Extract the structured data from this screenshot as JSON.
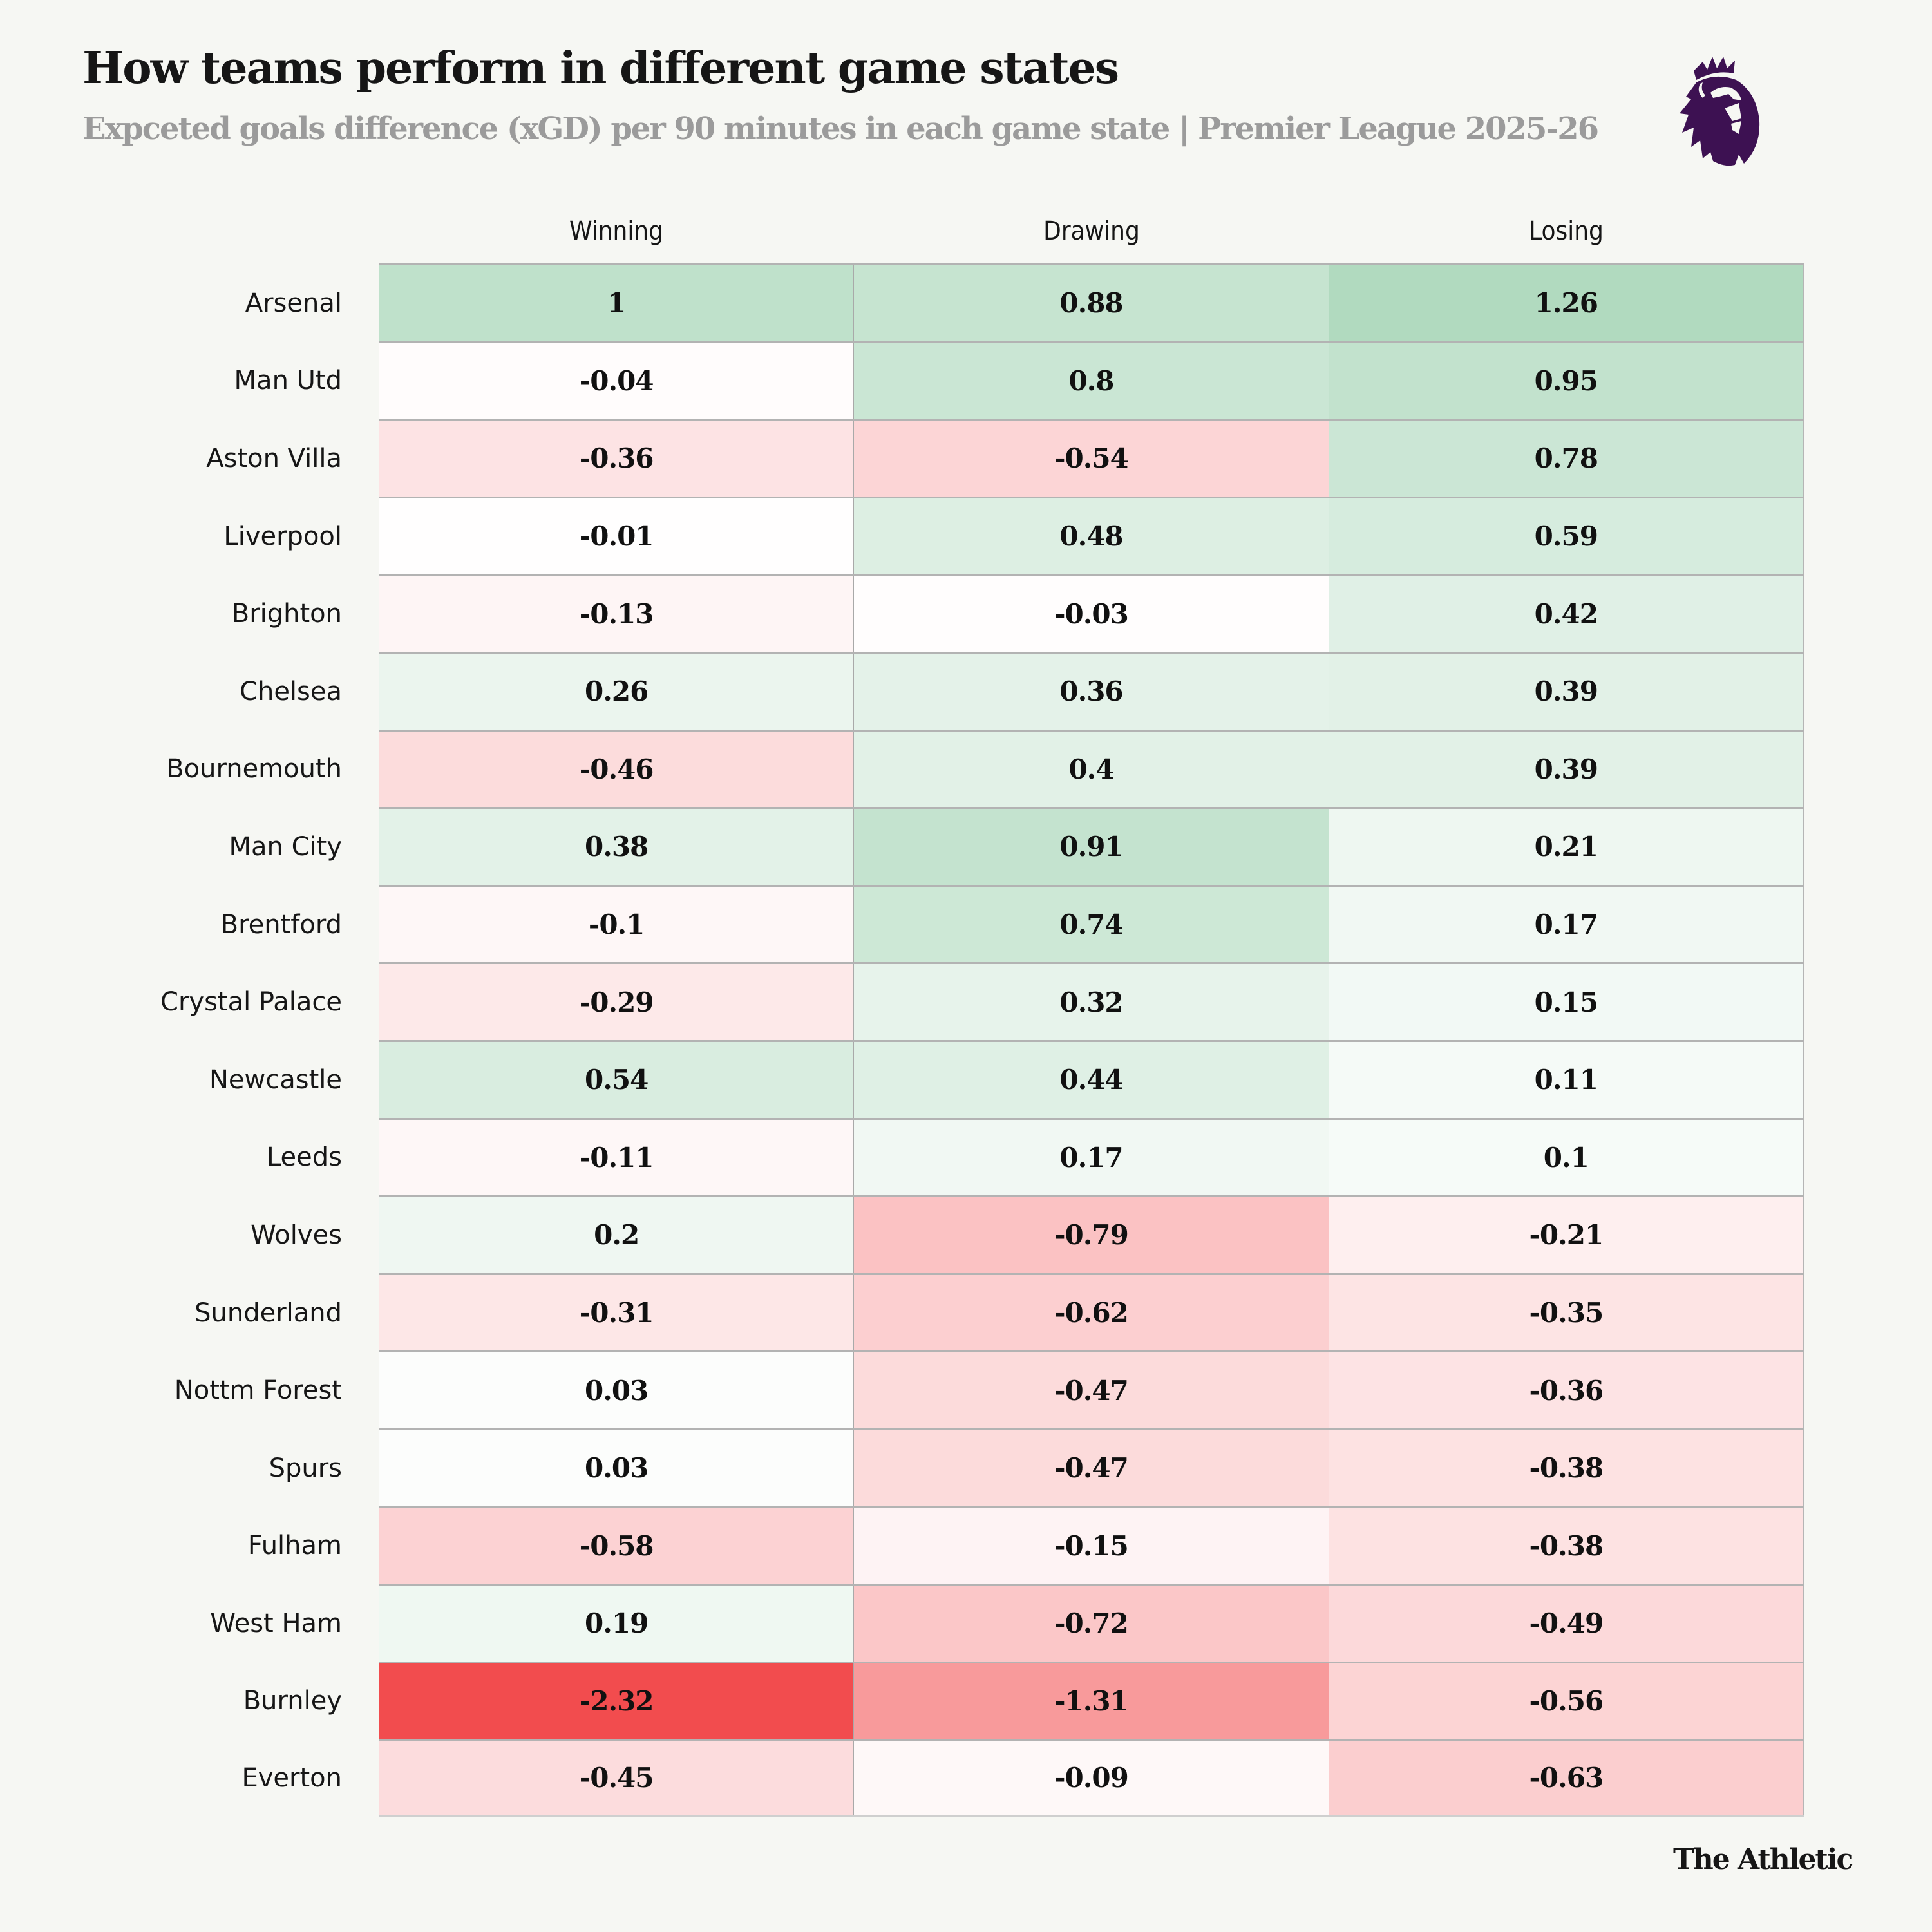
{
  "header": {
    "title": "How teams perform in different game states",
    "subtitle": "Expceted goals difference (xGD) per 90 minutes in each game state | Premier League 2025-26",
    "logo_icon": "premier-league-lion-icon",
    "logo_color": "#3d1152"
  },
  "footer": {
    "credit": "The Athletic"
  },
  "colors": {
    "positive_max": "#a3d3b3",
    "negative_max": "#f24c4e",
    "neutral": "#ffffff",
    "background": "#f6f7f3"
  },
  "chart_data": {
    "type": "heatmap",
    "title": "How teams perform in different game states",
    "subtitle": "Expceted goals difference (xGD) per 90 minutes in each game state | Premier League 2025-26",
    "xlabel": "",
    "ylabel": "",
    "columns": [
      "Winning",
      "Drawing",
      "Losing"
    ],
    "rows": [
      {
        "team": "Arsenal",
        "values": [
          "1",
          "0.88",
          "1.26"
        ]
      },
      {
        "team": "Man Utd",
        "values": [
          "-0.04",
          "0.8",
          "0.95"
        ]
      },
      {
        "team": "Aston Villa",
        "values": [
          "-0.36",
          "-0.54",
          "0.78"
        ]
      },
      {
        "team": "Liverpool",
        "values": [
          "-0.01",
          "0.48",
          "0.59"
        ]
      },
      {
        "team": "Brighton",
        "values": [
          "-0.13",
          "-0.03",
          "0.42"
        ]
      },
      {
        "team": "Chelsea",
        "values": [
          "0.26",
          "0.36",
          "0.39"
        ]
      },
      {
        "team": "Bournemouth",
        "values": [
          "-0.46",
          "0.4",
          "0.39"
        ]
      },
      {
        "team": "Man City",
        "values": [
          "0.38",
          "0.91",
          "0.21"
        ]
      },
      {
        "team": "Brentford",
        "values": [
          "-0.1",
          "0.74",
          "0.17"
        ]
      },
      {
        "team": "Crystal Palace",
        "values": [
          "-0.29",
          "0.32",
          "0.15"
        ]
      },
      {
        "team": "Newcastle",
        "values": [
          "0.54",
          "0.44",
          "0.11"
        ]
      },
      {
        "team": "Leeds",
        "values": [
          "-0.11",
          "0.17",
          "0.1"
        ]
      },
      {
        "team": "Wolves",
        "values": [
          "0.2",
          "-0.79",
          "-0.21"
        ]
      },
      {
        "team": "Sunderland",
        "values": [
          "-0.31",
          "-0.62",
          "-0.35"
        ]
      },
      {
        "team": "Nottm Forest",
        "values": [
          "0.03",
          "-0.47",
          "-0.36"
        ]
      },
      {
        "team": "Spurs",
        "values": [
          "0.03",
          "-0.47",
          "-0.38"
        ]
      },
      {
        "team": "Fulham",
        "values": [
          "-0.58",
          "-0.15",
          "-0.38"
        ]
      },
      {
        "team": "West Ham",
        "values": [
          "0.19",
          "-0.72",
          "-0.49"
        ]
      },
      {
        "team": "Burnley",
        "values": [
          "-2.32",
          "-1.31",
          "-0.56"
        ]
      },
      {
        "team": "Everton",
        "values": [
          "-0.45",
          "-0.09",
          "-0.63"
        ]
      }
    ],
    "color_scale": {
      "min": -2.32,
      "mid": 0,
      "max": 2.32,
      "low_color": "#f24c4e",
      "mid_color": "#ffffff",
      "high_color": "#3fa866"
    },
    "legend": "none",
    "grid": true
  }
}
